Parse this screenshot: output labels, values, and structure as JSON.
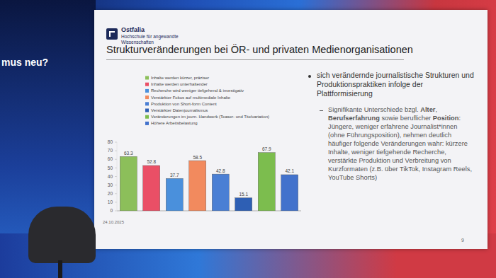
{
  "slide": {
    "stage_text": "mus neu?",
    "logo_name": "Ostfalia",
    "logo_subtitle": "Hochschule für angewandte Wissenschaften",
    "title": "Strukturveränderungen bei ÖR- und privaten Medienorganisationen",
    "bullet": "sich verändernde journalistische Strukturen und Produktionspraktiken infolge der Plattformisierung",
    "sub_bullet": [
      {
        "text": "Signifikante Unterschiede bzgl. ",
        "bold": false
      },
      {
        "text": "Alter",
        "bold": true
      },
      {
        "text": ", ",
        "bold": false
      },
      {
        "text": "Berufserfahrung",
        "bold": true
      },
      {
        "text": " sowie beruflicher ",
        "bold": false
      },
      {
        "text": "Position",
        "bold": true
      },
      {
        "text": ": Jüngere, weniger erfahrene Journalist*innen (ohne Führungsposition), nehmen deutlich häufiger folgende Veränderungen wahr: kürzere Inhalte, weniger tiefgehende Recherche, verstärkte Produktion und Verbreitung von Kurzformaten (z.B. über TikTok, Instagram Reels, YouTube Shorts)",
        "bold": false
      }
    ],
    "date": "24.10.2025",
    "page": "9"
  },
  "chart_data": {
    "type": "bar",
    "categories": [
      "Inhalte werden kürzer, präziser",
      "Inhalte werden unterhaltender",
      "Recherche wird weniger tiefgehend & investigativ",
      "Verstärkter Fokus auf multimediale Inhalte",
      "Produktion von Short-form Content",
      "Verstärkter Datenjournalismus",
      "Veränderungen im journ. Handwerk (Teaser- und Titelvariation)",
      "Höhere Arbeitsbelastung"
    ],
    "values": [
      63.3,
      52.8,
      37.7,
      58.5,
      42.8,
      15.1,
      67.9,
      42.1
    ],
    "colors": [
      "#8cbf5a",
      "#ea4f66",
      "#4a90dc",
      "#f28a5e",
      "#4a7fd4",
      "#2e5fb4",
      "#7cbd4e",
      "#4272cc"
    ],
    "ylim": [
      0,
      80
    ],
    "yticks": [
      0,
      10,
      20,
      30,
      40,
      50,
      60,
      70,
      80
    ],
    "grid": false,
    "data_labels": true,
    "tick_labels": "y",
    "legend": "top"
  }
}
